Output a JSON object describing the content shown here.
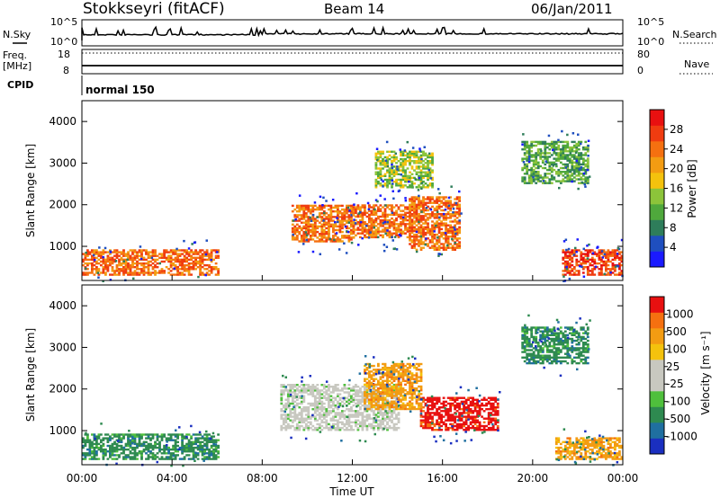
{
  "header": {
    "title": "Stokkseyri (fitACF)",
    "beam": "Beam 14",
    "date": "06/Jan/2011"
  },
  "strips": {
    "nsky_label": "N.Sky",
    "nsky_ticks": [
      "10^5",
      "10^0"
    ],
    "nsearch_label": "N.Search",
    "nsearch_ticks": [
      "10^5",
      "10^0"
    ],
    "freq_label": "Freq.",
    "freq_unit": "[MHz]",
    "freq_ticks": [
      "18",
      "8"
    ],
    "nave_label": "Nave",
    "nave_ticks": [
      "80",
      "0"
    ],
    "cpid_label": "CPID",
    "cpid_value": "normal 150"
  },
  "power_panel": {
    "ylabel": "Slant Range [km]",
    "yticks": [
      "4000",
      "3000",
      "2000",
      "1000"
    ],
    "colorbar_label": "Power [dB]",
    "colorbar_ticks": [
      "28",
      "24",
      "20",
      "16",
      "12",
      "8",
      "4"
    ],
    "colors": [
      "#1a1aff",
      "#1f4fbf",
      "#2e7d5a",
      "#4fa83c",
      "#8cc43a",
      "#f4c20d",
      "#f39c12",
      "#f57010",
      "#f03c10",
      "#e81010"
    ]
  },
  "velocity_panel": {
    "ylabel": "Slant Range [km]",
    "yticks": [
      "4000",
      "3000",
      "2000",
      "1000"
    ],
    "colorbar_label": "Velocity [m s⁻¹]",
    "colorbar_ticks": [
      "1000",
      "500",
      "100",
      "25",
      "-25",
      "-100",
      "-500",
      "-1000"
    ],
    "colors": [
      "#1a2fc0",
      "#1f6fa0",
      "#2e8a50",
      "#4fbf3c",
      "#c8c8c0",
      "#c8c8c0",
      "#f4c20d",
      "#f39c12",
      "#f57010",
      "#e81010"
    ]
  },
  "xaxis": {
    "ticks": [
      "00:00",
      "04:00",
      "08:00",
      "12:00",
      "16:00",
      "20:00",
      "00:00"
    ],
    "label": "Time UT"
  },
  "chart_data": {
    "type": "heatmap",
    "x_unit": "hours UT",
    "xlim": [
      0,
      24
    ],
    "ylim": [
      180,
      4500
    ],
    "power_scale": [
      0,
      30
    ],
    "velocity_scale": [
      -1000,
      1000
    ],
    "power_regions": [
      {
        "t": [
          0.0,
          6.0
        ],
        "range": [
          300,
          900
        ],
        "level": 24
      },
      {
        "t": [
          9.3,
          12.0
        ],
        "range": [
          1100,
          2000
        ],
        "level": 22
      },
      {
        "t": [
          12.0,
          14.5
        ],
        "range": [
          1200,
          2000
        ],
        "level": 24
      },
      {
        "t": [
          14.5,
          16.8
        ],
        "range": [
          900,
          2200
        ],
        "level": 22
      },
      {
        "t": [
          13.0,
          15.5
        ],
        "range": [
          2400,
          3300
        ],
        "level": 14
      },
      {
        "t": [
          19.5,
          22.5
        ],
        "range": [
          2500,
          3500
        ],
        "level": 10
      },
      {
        "t": [
          21.3,
          24.0
        ],
        "range": [
          300,
          900
        ],
        "level": 28
      }
    ],
    "velocity_regions": [
      {
        "t": [
          0.0,
          6.0
        ],
        "range": [
          300,
          900
        ],
        "value": 100
      },
      {
        "t": [
          8.8,
          14.0
        ],
        "range": [
          1000,
          2100
        ],
        "value": 0
      },
      {
        "t": [
          15.0,
          18.5
        ],
        "range": [
          1000,
          1800
        ],
        "value": -700
      },
      {
        "t": [
          12.5,
          15.0
        ],
        "range": [
          1500,
          2600
        ],
        "value": -300
      },
      {
        "t": [
          21.0,
          24.0
        ],
        "range": [
          300,
          800
        ],
        "value": -500
      },
      {
        "t": [
          19.5,
          22.5
        ],
        "range": [
          2600,
          3500
        ],
        "value": 100
      }
    ]
  }
}
